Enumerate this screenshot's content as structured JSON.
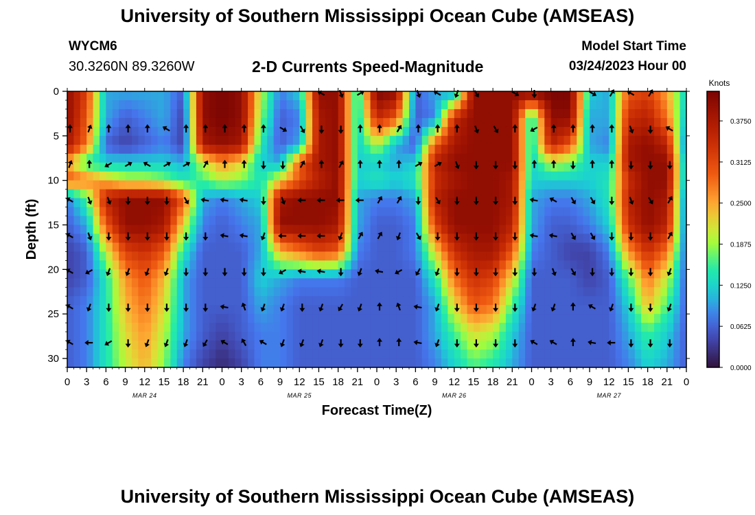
{
  "header": {
    "title": "University of Southern Mississippi Ocean Cube (AMSEAS)",
    "station": "WYCM6",
    "coords": "30.3260N  89.3260W",
    "subtitle": "2-D Currents Speed-Magnitude",
    "model_start_label": "Model Start Time",
    "model_start_time": "03/24/2023 Hour 00"
  },
  "footer": {
    "title": "University of Southern Mississippi Ocean Cube (AMSEAS)"
  },
  "chart_data": {
    "type": "heatmap",
    "xlabel": "Forecast Time(Z)",
    "ylabel": "Depth (ft)",
    "x_range_hours": [
      0,
      96
    ],
    "y_range_ft": [
      0,
      31
    ],
    "x_ticks": [
      "0",
      "3",
      "6",
      "9",
      "12",
      "15",
      "18",
      "21",
      "0",
      "3",
      "6",
      "9",
      "12",
      "15",
      "18",
      "21",
      "0",
      "3",
      "6",
      "9",
      "12",
      "15",
      "18",
      "21",
      "0",
      "3",
      "6",
      "9",
      "12",
      "15",
      "18",
      "21",
      "0"
    ],
    "y_ticks": [
      0,
      5,
      10,
      15,
      20,
      25,
      30
    ],
    "y_tick_labels": [
      "0",
      "5",
      "10",
      "15",
      "20",
      "25",
      "30"
    ],
    "day_labels": [
      {
        "hour": 12,
        "label": "MAR 24"
      },
      {
        "hour": 36,
        "label": "MAR 25"
      },
      {
        "hour": 60,
        "label": "MAR 26"
      },
      {
        "hour": 84,
        "label": "MAR 27"
      }
    ],
    "colorbar": {
      "units": "Knots",
      "min": 0.0,
      "max": 0.42,
      "ticks": [
        0.0,
        0.0625,
        0.125,
        0.1875,
        0.25,
        0.3125,
        0.375
      ],
      "tick_labels": [
        "0.0000",
        "0.0625",
        "0.1250",
        "0.1875",
        "0.2500",
        "0.3125",
        "0.3750"
      ]
    },
    "speed_keyframes": {
      "hours": [
        0,
        3,
        6,
        9,
        12,
        15,
        18,
        21,
        24,
        27,
        30,
        33,
        36,
        39,
        42,
        45,
        48,
        51,
        54,
        57,
        60,
        63,
        66,
        69,
        72,
        75,
        78,
        81,
        84,
        87,
        90,
        93,
        96
      ],
      "depths_ft": [
        0,
        3,
        6,
        8,
        10,
        12,
        15,
        18,
        21,
        24,
        27,
        31
      ],
      "rows": [
        [
          0.4,
          0.32,
          0.1,
          0.1,
          0.1,
          0.1,
          0.06,
          0.4,
          0.42,
          0.4,
          0.2,
          0.08,
          0.12,
          0.4,
          0.4,
          0.12,
          0.42,
          0.4,
          0.06,
          0.1,
          0.08,
          0.4,
          0.4,
          0.4,
          0.42,
          0.42,
          0.42,
          0.12,
          0.1,
          0.3,
          0.32,
          0.25,
          0.12
        ],
        [
          0.4,
          0.3,
          0.1,
          0.06,
          0.08,
          0.1,
          0.04,
          0.4,
          0.42,
          0.4,
          0.18,
          0.06,
          0.08,
          0.38,
          0.4,
          0.12,
          0.35,
          0.3,
          0.06,
          0.08,
          0.35,
          0.4,
          0.4,
          0.4,
          0.12,
          0.4,
          0.4,
          0.1,
          0.1,
          0.34,
          0.36,
          0.28,
          0.1
        ],
        [
          0.38,
          0.28,
          0.06,
          0.04,
          0.06,
          0.08,
          0.04,
          0.38,
          0.4,
          0.38,
          0.14,
          0.06,
          0.1,
          0.38,
          0.4,
          0.12,
          0.2,
          0.1,
          0.06,
          0.3,
          0.38,
          0.4,
          0.4,
          0.4,
          0.12,
          0.36,
          0.3,
          0.1,
          0.08,
          0.38,
          0.4,
          0.36,
          0.06
        ],
        [
          0.25,
          0.14,
          0.12,
          0.12,
          0.12,
          0.12,
          0.1,
          0.2,
          0.26,
          0.22,
          0.12,
          0.1,
          0.3,
          0.38,
          0.4,
          0.12,
          0.12,
          0.1,
          0.12,
          0.36,
          0.4,
          0.4,
          0.4,
          0.4,
          0.12,
          0.2,
          0.18,
          0.12,
          0.12,
          0.38,
          0.4,
          0.4,
          0.08
        ],
        [
          0.3,
          0.28,
          0.24,
          0.2,
          0.2,
          0.18,
          0.14,
          0.16,
          0.2,
          0.18,
          0.14,
          0.22,
          0.3,
          0.36,
          0.4,
          0.12,
          0.14,
          0.12,
          0.14,
          0.34,
          0.38,
          0.4,
          0.4,
          0.38,
          0.12,
          0.12,
          0.12,
          0.12,
          0.14,
          0.34,
          0.4,
          0.4,
          0.08
        ],
        [
          0.08,
          0.16,
          0.36,
          0.4,
          0.4,
          0.4,
          0.3,
          0.1,
          0.08,
          0.1,
          0.12,
          0.38,
          0.4,
          0.4,
          0.4,
          0.1,
          0.08,
          0.08,
          0.1,
          0.36,
          0.4,
          0.4,
          0.4,
          0.38,
          0.1,
          0.08,
          0.08,
          0.1,
          0.14,
          0.36,
          0.4,
          0.38,
          0.06
        ],
        [
          0.06,
          0.1,
          0.3,
          0.4,
          0.4,
          0.38,
          0.22,
          0.08,
          0.06,
          0.08,
          0.1,
          0.4,
          0.4,
          0.4,
          0.38,
          0.1,
          0.06,
          0.06,
          0.08,
          0.32,
          0.4,
          0.4,
          0.4,
          0.36,
          0.1,
          0.06,
          0.06,
          0.08,
          0.12,
          0.34,
          0.4,
          0.36,
          0.06
        ],
        [
          0.04,
          0.06,
          0.2,
          0.32,
          0.34,
          0.3,
          0.14,
          0.06,
          0.06,
          0.06,
          0.1,
          0.24,
          0.28,
          0.32,
          0.3,
          0.08,
          0.06,
          0.06,
          0.08,
          0.22,
          0.34,
          0.38,
          0.38,
          0.3,
          0.08,
          0.06,
          0.04,
          0.04,
          0.08,
          0.26,
          0.34,
          0.28,
          0.06
        ],
        [
          0.04,
          0.06,
          0.14,
          0.26,
          0.3,
          0.24,
          0.1,
          0.06,
          0.06,
          0.06,
          0.12,
          0.1,
          0.08,
          0.08,
          0.08,
          0.06,
          0.06,
          0.06,
          0.06,
          0.14,
          0.28,
          0.34,
          0.32,
          0.22,
          0.06,
          0.06,
          0.06,
          0.04,
          0.06,
          0.16,
          0.28,
          0.2,
          0.06
        ],
        [
          0.06,
          0.08,
          0.14,
          0.24,
          0.28,
          0.22,
          0.1,
          0.06,
          0.06,
          0.06,
          0.1,
          0.08,
          0.06,
          0.06,
          0.06,
          0.06,
          0.06,
          0.06,
          0.06,
          0.1,
          0.22,
          0.3,
          0.28,
          0.16,
          0.06,
          0.06,
          0.06,
          0.06,
          0.06,
          0.12,
          0.24,
          0.16,
          0.06
        ],
        [
          0.06,
          0.08,
          0.14,
          0.22,
          0.26,
          0.2,
          0.1,
          0.06,
          0.04,
          0.06,
          0.08,
          0.08,
          0.06,
          0.06,
          0.06,
          0.06,
          0.06,
          0.06,
          0.06,
          0.1,
          0.16,
          0.22,
          0.2,
          0.12,
          0.06,
          0.06,
          0.06,
          0.06,
          0.06,
          0.1,
          0.16,
          0.12,
          0.06
        ],
        [
          0.06,
          0.08,
          0.14,
          0.2,
          0.24,
          0.18,
          0.08,
          0.04,
          0.02,
          0.04,
          0.08,
          0.08,
          0.06,
          0.06,
          0.06,
          0.06,
          0.06,
          0.06,
          0.06,
          0.08,
          0.12,
          0.16,
          0.14,
          0.1,
          0.06,
          0.06,
          0.06,
          0.06,
          0.06,
          0.08,
          0.12,
          0.1,
          0.06
        ]
      ]
    },
    "direction_arrows": {
      "hours": [
        0,
        3,
        6,
        9,
        12,
        15,
        18,
        21,
        24,
        27,
        30,
        33,
        36,
        39,
        42,
        45,
        48,
        51,
        54,
        57,
        60,
        63,
        66,
        69,
        72,
        75,
        78,
        81,
        84,
        87,
        90,
        93
      ],
      "depths_ft": [
        0,
        4,
        8,
        12,
        16,
        20,
        24,
        28
      ],
      "headings_deg": [
        [
          null,
          null,
          null,
          null,
          null,
          null,
          null,
          null,
          null,
          null,
          null,
          null,
          null,
          300,
          160,
          60,
          null,
          null,
          160,
          300,
          200,
          150,
          null,
          120,
          180,
          null,
          null,
          120,
          30,
          300,
          30,
          null
        ],
        [
          0,
          20,
          0,
          0,
          0,
          300,
          0,
          0,
          0,
          0,
          0,
          120,
          150,
          180,
          180,
          0,
          0,
          30,
          0,
          0,
          0,
          160,
          150,
          0,
          240,
          0,
          0,
          0,
          0,
          160,
          180,
          300
        ],
        [
          20,
          0,
          240,
          60,
          300,
          60,
          60,
          30,
          0,
          0,
          180,
          180,
          30,
          0,
          30,
          0,
          0,
          0,
          60,
          60,
          160,
          180,
          180,
          180,
          0,
          0,
          180,
          0,
          0,
          180,
          180,
          180
        ],
        [
          300,
          160,
          160,
          180,
          180,
          180,
          150,
          280,
          280,
          280,
          180,
          160,
          270,
          270,
          270,
          270,
          30,
          30,
          180,
          150,
          180,
          180,
          180,
          180,
          280,
          300,
          150,
          150,
          180,
          160,
          150,
          30
        ],
        [
          300,
          160,
          180,
          180,
          180,
          180,
          180,
          180,
          280,
          280,
          200,
          270,
          270,
          270,
          200,
          30,
          30,
          200,
          150,
          180,
          180,
          180,
          180,
          180,
          280,
          280,
          150,
          150,
          180,
          180,
          180,
          30
        ],
        [
          300,
          240,
          200,
          200,
          200,
          200,
          180,
          180,
          180,
          180,
          180,
          240,
          280,
          280,
          180,
          200,
          280,
          240,
          210,
          200,
          180,
          180,
          180,
          180,
          180,
          160,
          150,
          180,
          180,
          180,
          180,
          200
        ],
        [
          300,
          200,
          180,
          180,
          180,
          180,
          180,
          180,
          280,
          340,
          200,
          200,
          180,
          200,
          210,
          200,
          0,
          340,
          280,
          200,
          180,
          180,
          180,
          180,
          200,
          200,
          0,
          300,
          200,
          180,
          180,
          200
        ],
        [
          300,
          270,
          240,
          180,
          200,
          200,
          200,
          210,
          300,
          330,
          300,
          200,
          200,
          200,
          180,
          180,
          0,
          0,
          280,
          200,
          180,
          180,
          180,
          180,
          300,
          300,
          0,
          280,
          270,
          180,
          180,
          180
        ]
      ]
    }
  }
}
